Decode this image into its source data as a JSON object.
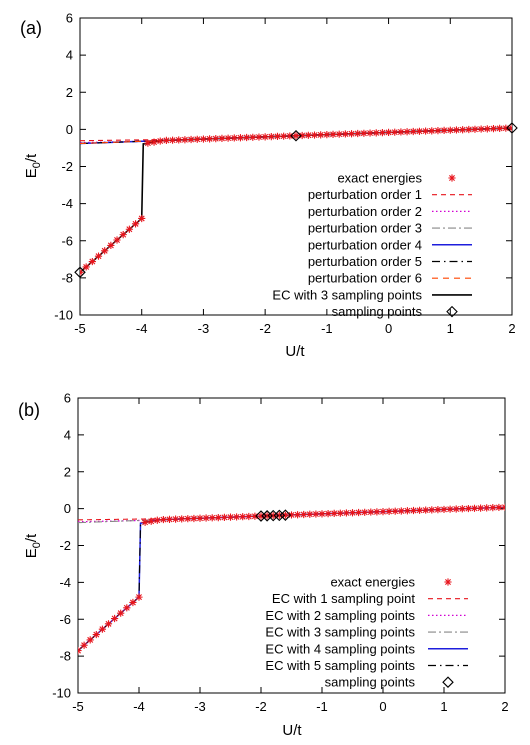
{
  "chart_data": [
    {
      "panel": "(a)",
      "type": "line",
      "xlabel": "U/t",
      "ylabel": "E0/t",
      "ylabel_main": "E",
      "ylabel_sub": "0",
      "ylabel_tail": "/t",
      "xlim": [
        -5,
        2
      ],
      "ylim": [
        -10,
        6
      ],
      "xticks": [
        -5,
        -4,
        -3,
        -2,
        -1,
        0,
        1,
        2
      ],
      "yticks": [
        -10,
        -8,
        -6,
        -4,
        -2,
        0,
        2,
        4,
        6
      ],
      "xticklabels": [
        "-5",
        "-4",
        "-3",
        "-2",
        "-1",
        "0",
        "1",
        "2"
      ],
      "yticklabels": [
        "-10",
        "-8",
        "-6",
        "-4",
        "-2",
        "0",
        "2",
        "4",
        "6"
      ],
      "legend_position": "center-right",
      "series": [
        {
          "name": "exact energies",
          "kind": "exact",
          "color": "#e8141c"
        },
        {
          "name": "perturbation order 1",
          "kind": "pert",
          "params": {
            "s": 0.045,
            "c": -0.55
          },
          "color": "#e8141c",
          "dash": "5,4",
          "width": 1.1
        },
        {
          "name": "perturbation order 2",
          "kind": "pert",
          "params": {
            "s": 0.07,
            "c": -0.62
          },
          "color": "#d200d2",
          "dash": "1.5,2.5",
          "width": 1.3
        },
        {
          "name": "perturbation order 3",
          "kind": "pert",
          "params": {
            "s": 0.095,
            "c": -0.7
          },
          "color": "#888888",
          "dash": "8,3,2,3",
          "width": 1.1
        },
        {
          "name": "perturbation order 4",
          "kind": "pert",
          "params": {
            "s": 0.12,
            "c": -0.78
          },
          "color": "#1e1edc",
          "dash": "",
          "width": 1.5
        },
        {
          "name": "perturbation order 5",
          "kind": "pert",
          "params": {
            "s": 0.13,
            "c": -0.82
          },
          "color": "#000000",
          "dash": "8,4,1.5,4",
          "width": 1.2
        },
        {
          "name": "perturbation order 6",
          "kind": "pert",
          "params": {
            "s": 0.135,
            "c": -0.85
          },
          "color": "#ff4500",
          "dash": "6,5",
          "width": 1.1
        },
        {
          "name": "EC with 3 sampling points",
          "kind": "exactline",
          "color": "#000000",
          "dash": "",
          "width": 1.6
        },
        {
          "name": "sampling points",
          "kind": "samples",
          "x": [
            -5,
            -1.5,
            2
          ],
          "color": "#000000"
        }
      ]
    },
    {
      "panel": "(b)",
      "type": "line",
      "xlabel": "U/t",
      "ylabel": "E0/t",
      "ylabel_main": "E",
      "ylabel_sub": "0",
      "ylabel_tail": "/t",
      "xlim": [
        -5,
        2
      ],
      "ylim": [
        -10,
        6
      ],
      "xticks": [
        -5,
        -4,
        -3,
        -2,
        -1,
        0,
        1,
        2
      ],
      "yticks": [
        -10,
        -8,
        -6,
        -4,
        -2,
        0,
        2,
        4,
        6
      ],
      "xticklabels": [
        "-5",
        "-4",
        "-3",
        "-2",
        "-1",
        "0",
        "1",
        "2"
      ],
      "yticklabels": [
        "-10",
        "-8",
        "-6",
        "-4",
        "-2",
        "0",
        "2",
        "4",
        "6"
      ],
      "legend_position": "center-right",
      "series": [
        {
          "name": "exact energies",
          "kind": "exact",
          "color": "#e8141c"
        },
        {
          "name": "EC with 1 sampling point",
          "kind": "pert",
          "params": {
            "s": 0.045,
            "c": -0.55
          },
          "color": "#e8141c",
          "dash": "5,4",
          "width": 1.1
        },
        {
          "name": "EC with 2 sampling points",
          "kind": "pert",
          "params": {
            "s": 0.07,
            "c": -0.62
          },
          "color": "#d200d2",
          "dash": "1.5,2.5",
          "width": 1.3
        },
        {
          "name": "EC with 3 sampling points",
          "kind": "pert",
          "params": {
            "s": 0.31,
            "c": -1.1
          },
          "color": "#888888",
          "dash": "8,3,2,3",
          "width": 1.1
        },
        {
          "name": "EC with 4 sampling points",
          "kind": "exactline",
          "color": "#1e1edc",
          "dash": "",
          "width": 1.5
        },
        {
          "name": "EC with 5 sampling points",
          "kind": "exactline",
          "color": "#000000",
          "dash": "8,4,1.5,4",
          "width": 1.2
        },
        {
          "name": "sampling points",
          "kind": "samples",
          "x": [
            -2.0,
            -1.9,
            -1.8,
            -1.7,
            -1.6
          ],
          "color": "#000000"
        }
      ]
    }
  ]
}
